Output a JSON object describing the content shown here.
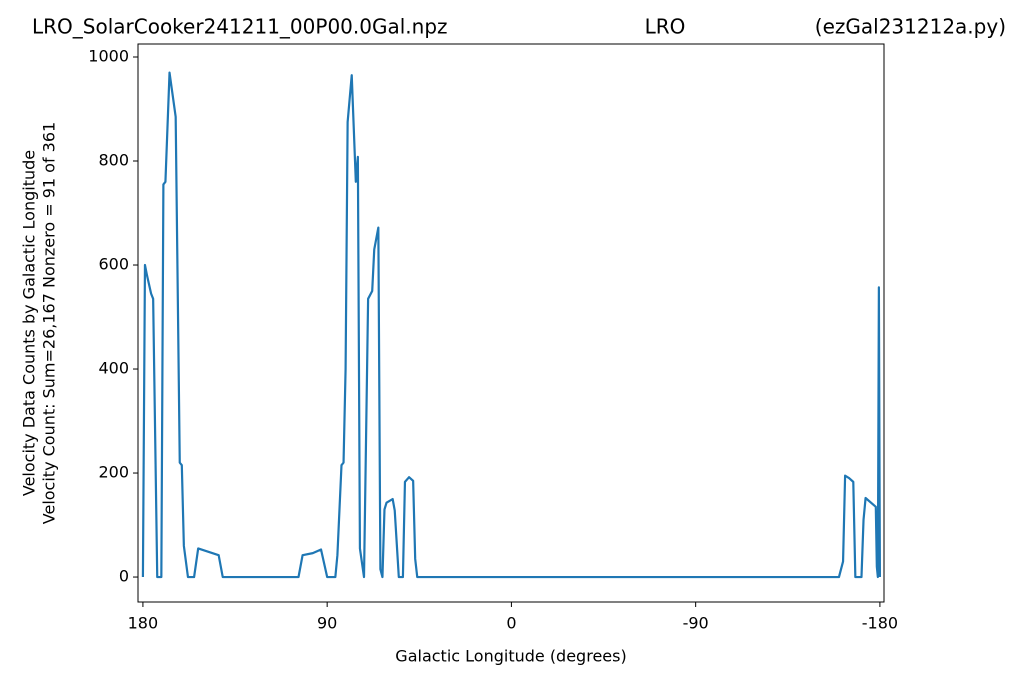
{
  "chart_data": {
    "type": "line",
    "title_parts": [
      "LRO_SolarCooker241211_00P00.0Gal.npz",
      "LRO",
      "(ezGal231212a.py)"
    ],
    "xlabel": "Galactic Longitude (degrees)",
    "ylabel_lines": [
      "Velocity Data Counts by Galactic Longitude",
      "Velocity Count: Sum=26,167 Nonzero = 91 of 361"
    ],
    "x": [
      180,
      179,
      178,
      176,
      175,
      173,
      171,
      170,
      169,
      167,
      164,
      162,
      161,
      160,
      158,
      155,
      153,
      143,
      141,
      104,
      102,
      97,
      93,
      90,
      86,
      85,
      83,
      82,
      81,
      80,
      78,
      76,
      75,
      74,
      72,
      70,
      68,
      67,
      65,
      64,
      63,
      62,
      61,
      58,
      57,
      55,
      53,
      52,
      50,
      48,
      47,
      46,
      -160,
      -162,
      -163,
      -165,
      -167,
      -168,
      -171,
      -172,
      -173,
      -178,
      -178.5,
      -179,
      -179.5,
      -180
    ],
    "values": [
      0,
      600,
      580,
      545,
      535,
      0,
      0,
      755,
      760,
      970,
      885,
      220,
      215,
      60,
      0,
      0,
      55,
      42,
      0,
      0,
      42,
      46,
      53,
      0,
      0,
      42,
      215,
      220,
      400,
      875,
      965,
      760,
      808,
      55,
      0,
      535,
      550,
      630,
      672,
      15,
      0,
      130,
      143,
      150,
      128,
      0,
      0,
      183,
      192,
      185,
      35,
      0,
      0,
      30,
      195,
      190,
      183,
      0,
      0,
      110,
      152,
      135,
      20,
      0,
      557,
      0
    ],
    "color": "#1f77b4",
    "xlim": [
      182.4,
      -182
    ],
    "xticks": [
      180,
      90,
      0,
      -90,
      -180
    ],
    "ylim": [
      -48,
      1025
    ],
    "yticks": [
      0,
      200,
      400,
      600,
      800,
      1000
    ]
  }
}
